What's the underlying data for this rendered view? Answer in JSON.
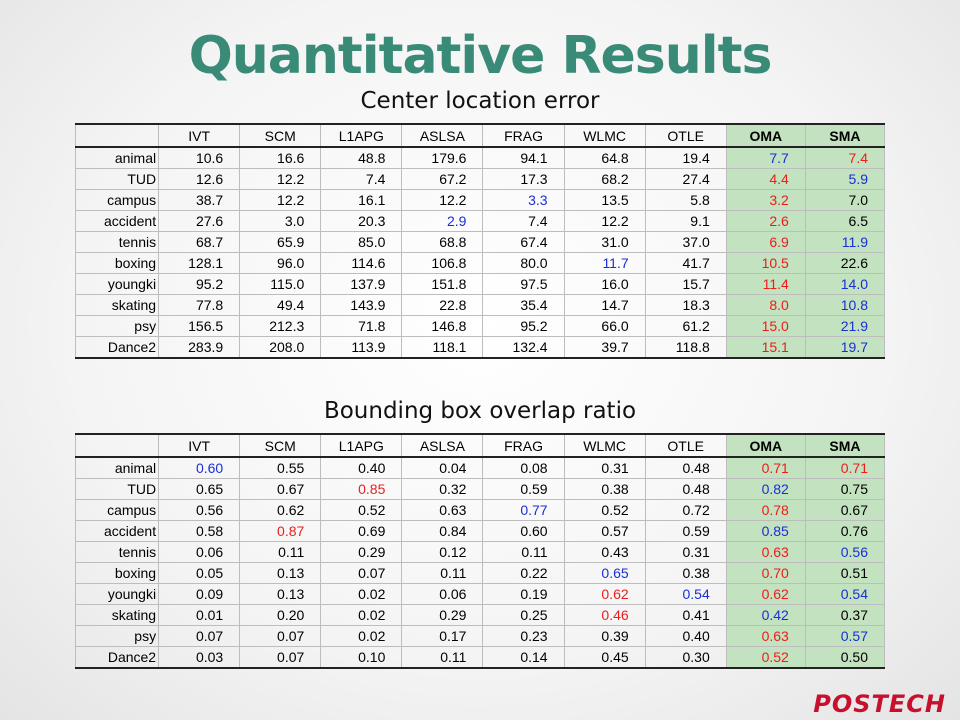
{
  "title": "Quantitative Results",
  "logo": "POSTECH",
  "colors": {
    "title": "#3a8a78",
    "best": "#ee1c1c",
    "second": "#1a2ed6",
    "highlight_columns": "#c3e2bf"
  },
  "tables": [
    {
      "caption": "Center location error",
      "columns": [
        "",
        "IVT",
        "SCM",
        "L1APG",
        "ASLSA",
        "FRAG",
        "WLMC",
        "OTLE",
        "OMA",
        "SMA"
      ],
      "rows": [
        {
          "label": "animal",
          "cells": [
            {
              "v": "10.6"
            },
            {
              "v": "16.6"
            },
            {
              "v": "48.8"
            },
            {
              "v": "179.6"
            },
            {
              "v": "94.1"
            },
            {
              "v": "64.8"
            },
            {
              "v": "19.4"
            },
            {
              "v": "7.7",
              "c": "blue"
            },
            {
              "v": "7.4",
              "c": "red"
            }
          ]
        },
        {
          "label": "TUD",
          "cells": [
            {
              "v": "12.6"
            },
            {
              "v": "12.2"
            },
            {
              "v": "7.4"
            },
            {
              "v": "67.2"
            },
            {
              "v": "17.3"
            },
            {
              "v": "68.2"
            },
            {
              "v": "27.4"
            },
            {
              "v": "4.4",
              "c": "red"
            },
            {
              "v": "5.9",
              "c": "blue"
            }
          ]
        },
        {
          "label": "campus",
          "cells": [
            {
              "v": "38.7"
            },
            {
              "v": "12.2"
            },
            {
              "v": "16.1"
            },
            {
              "v": "12.2"
            },
            {
              "v": "3.3",
              "c": "blue"
            },
            {
              "v": "13.5"
            },
            {
              "v": "5.8"
            },
            {
              "v": "3.2",
              "c": "red"
            },
            {
              "v": "7.0"
            }
          ]
        },
        {
          "label": "accident",
          "cells": [
            {
              "v": "27.6"
            },
            {
              "v": "3.0"
            },
            {
              "v": "20.3"
            },
            {
              "v": "2.9",
              "c": "blue"
            },
            {
              "v": "7.4"
            },
            {
              "v": "12.2"
            },
            {
              "v": "9.1"
            },
            {
              "v": "2.6",
              "c": "red"
            },
            {
              "v": "6.5"
            }
          ]
        },
        {
          "label": "tennis",
          "cells": [
            {
              "v": "68.7"
            },
            {
              "v": "65.9"
            },
            {
              "v": "85.0"
            },
            {
              "v": "68.8"
            },
            {
              "v": "67.4"
            },
            {
              "v": "31.0"
            },
            {
              "v": "37.0"
            },
            {
              "v": "6.9",
              "c": "red"
            },
            {
              "v": "11.9",
              "c": "blue"
            }
          ]
        },
        {
          "label": "boxing",
          "cells": [
            {
              "v": "128.1"
            },
            {
              "v": "96.0"
            },
            {
              "v": "114.6"
            },
            {
              "v": "106.8"
            },
            {
              "v": "80.0"
            },
            {
              "v": "11.7",
              "c": "blue"
            },
            {
              "v": "41.7"
            },
            {
              "v": "10.5",
              "c": "red"
            },
            {
              "v": "22.6"
            }
          ]
        },
        {
          "label": "youngki",
          "cells": [
            {
              "v": "95.2"
            },
            {
              "v": "115.0"
            },
            {
              "v": "137.9"
            },
            {
              "v": "151.8"
            },
            {
              "v": "97.5"
            },
            {
              "v": "16.0"
            },
            {
              "v": "15.7"
            },
            {
              "v": "11.4",
              "c": "red"
            },
            {
              "v": "14.0",
              "c": "blue"
            }
          ]
        },
        {
          "label": "skating",
          "cells": [
            {
              "v": "77.8"
            },
            {
              "v": "49.4"
            },
            {
              "v": "143.9"
            },
            {
              "v": "22.8"
            },
            {
              "v": "35.4"
            },
            {
              "v": "14.7"
            },
            {
              "v": "18.3"
            },
            {
              "v": "8.0",
              "c": "red"
            },
            {
              "v": "10.8",
              "c": "blue"
            }
          ]
        },
        {
          "label": "psy",
          "cells": [
            {
              "v": "156.5"
            },
            {
              "v": "212.3"
            },
            {
              "v": "71.8"
            },
            {
              "v": "146.8"
            },
            {
              "v": "95.2"
            },
            {
              "v": "66.0"
            },
            {
              "v": "61.2"
            },
            {
              "v": "15.0",
              "c": "red"
            },
            {
              "v": "21.9",
              "c": "blue"
            }
          ]
        },
        {
          "label": "Dance2",
          "cells": [
            {
              "v": "283.9"
            },
            {
              "v": "208.0"
            },
            {
              "v": "113.9"
            },
            {
              "v": "118.1"
            },
            {
              "v": "132.4"
            },
            {
              "v": "39.7"
            },
            {
              "v": "118.8"
            },
            {
              "v": "15.1",
              "c": "red"
            },
            {
              "v": "19.7",
              "c": "blue"
            }
          ]
        }
      ]
    },
    {
      "caption": "Bounding box overlap ratio",
      "columns": [
        "",
        "IVT",
        "SCM",
        "L1APG",
        "ASLSA",
        "FRAG",
        "WLMC",
        "OTLE",
        "OMA",
        "SMA"
      ],
      "rows": [
        {
          "label": "animal",
          "cells": [
            {
              "v": "0.60",
              "c": "blue"
            },
            {
              "v": "0.55"
            },
            {
              "v": "0.40"
            },
            {
              "v": "0.04"
            },
            {
              "v": "0.08"
            },
            {
              "v": "0.31"
            },
            {
              "v": "0.48"
            },
            {
              "v": "0.71",
              "c": "red"
            },
            {
              "v": "0.71",
              "c": "red"
            }
          ]
        },
        {
          "label": "TUD",
          "cells": [
            {
              "v": "0.65"
            },
            {
              "v": "0.67"
            },
            {
              "v": "0.85",
              "c": "red"
            },
            {
              "v": "0.32"
            },
            {
              "v": "0.59"
            },
            {
              "v": "0.38"
            },
            {
              "v": "0.48"
            },
            {
              "v": "0.82",
              "c": "blue"
            },
            {
              "v": "0.75"
            }
          ]
        },
        {
          "label": "campus",
          "cells": [
            {
              "v": "0.56"
            },
            {
              "v": "0.62"
            },
            {
              "v": "0.52"
            },
            {
              "v": "0.63"
            },
            {
              "v": "0.77",
              "c": "blue"
            },
            {
              "v": "0.52"
            },
            {
              "v": "0.72"
            },
            {
              "v": "0.78",
              "c": "red"
            },
            {
              "v": "0.67"
            }
          ]
        },
        {
          "label": "accident",
          "cells": [
            {
              "v": "0.58"
            },
            {
              "v": "0.87",
              "c": "red"
            },
            {
              "v": "0.69"
            },
            {
              "v": "0.84"
            },
            {
              "v": "0.60"
            },
            {
              "v": "0.57"
            },
            {
              "v": "0.59"
            },
            {
              "v": "0.85",
              "c": "blue"
            },
            {
              "v": "0.76"
            }
          ]
        },
        {
          "label": "tennis",
          "cells": [
            {
              "v": "0.06"
            },
            {
              "v": "0.11"
            },
            {
              "v": "0.29"
            },
            {
              "v": "0.12"
            },
            {
              "v": "0.11"
            },
            {
              "v": "0.43"
            },
            {
              "v": "0.31"
            },
            {
              "v": "0.63",
              "c": "red"
            },
            {
              "v": "0.56",
              "c": "blue"
            }
          ]
        },
        {
          "label": "boxing",
          "cells": [
            {
              "v": "0.05"
            },
            {
              "v": "0.13"
            },
            {
              "v": "0.07"
            },
            {
              "v": "0.11"
            },
            {
              "v": "0.22"
            },
            {
              "v": "0.65",
              "c": "blue"
            },
            {
              "v": "0.38"
            },
            {
              "v": "0.70",
              "c": "red"
            },
            {
              "v": "0.51"
            }
          ]
        },
        {
          "label": "youngki",
          "cells": [
            {
              "v": "0.09"
            },
            {
              "v": "0.13"
            },
            {
              "v": "0.02"
            },
            {
              "v": "0.06"
            },
            {
              "v": "0.19"
            },
            {
              "v": "0.62",
              "c": "red"
            },
            {
              "v": "0.54",
              "c": "blue"
            },
            {
              "v": "0.62",
              "c": "red"
            },
            {
              "v": "0.54",
              "c": "blue"
            }
          ]
        },
        {
          "label": "skating",
          "cells": [
            {
              "v": "0.01"
            },
            {
              "v": "0.20"
            },
            {
              "v": "0.02"
            },
            {
              "v": "0.29"
            },
            {
              "v": "0.25"
            },
            {
              "v": "0.46",
              "c": "red"
            },
            {
              "v": "0.41"
            },
            {
              "v": "0.42",
              "c": "blue"
            },
            {
              "v": "0.37"
            }
          ]
        },
        {
          "label": "psy",
          "cells": [
            {
              "v": "0.07"
            },
            {
              "v": "0.07"
            },
            {
              "v": "0.02"
            },
            {
              "v": "0.17"
            },
            {
              "v": "0.23"
            },
            {
              "v": "0.39"
            },
            {
              "v": "0.40"
            },
            {
              "v": "0.63",
              "c": "red"
            },
            {
              "v": "0.57",
              "c": "blue"
            }
          ]
        },
        {
          "label": "Dance2",
          "cells": [
            {
              "v": "0.03"
            },
            {
              "v": "0.07"
            },
            {
              "v": "0.10"
            },
            {
              "v": "0.11"
            },
            {
              "v": "0.14"
            },
            {
              "v": "0.45"
            },
            {
              "v": "0.30"
            },
            {
              "v": "0.52",
              "c": "red"
            },
            {
              "v": "0.50"
            }
          ]
        }
      ]
    }
  ]
}
